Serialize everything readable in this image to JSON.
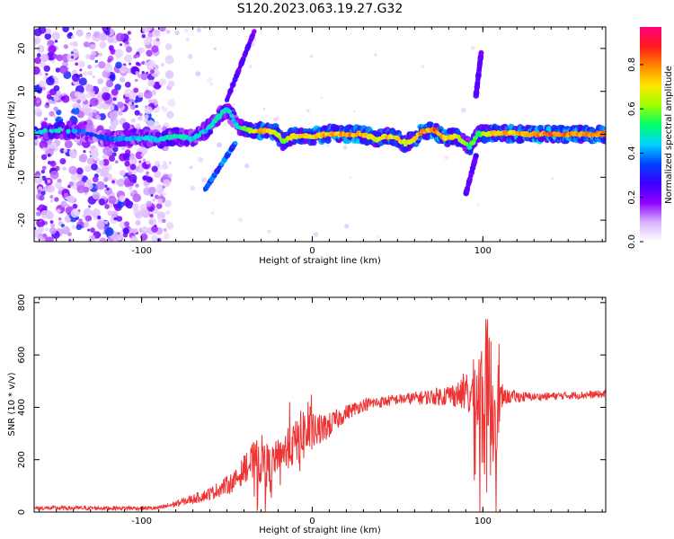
{
  "title": "S120.2023.063.19.27.G32",
  "chart_data": [
    {
      "type": "heatmap",
      "xlabel": "Height of straight line (km)",
      "ylabel": "Frequency (Hz)",
      "xlim": [
        -163,
        172
      ],
      "ylim": [
        -25,
        25
      ],
      "x_ticks": [
        -100,
        0,
        100
      ],
      "x_tick_labels": [
        "-100",
        "0",
        "100"
      ],
      "y_ticks": [
        -20,
        -10,
        0,
        10,
        20
      ],
      "y_tick_labels": [
        "-20",
        "-10",
        "0",
        "10",
        "20"
      ],
      "grid": false,
      "colorbar": {
        "label": "Normalized spectral amplitude",
        "range": [
          0,
          0.97
        ],
        "ticks": [
          0,
          0.2,
          0.4,
          0.6,
          0.8
        ],
        "tick_labels": [
          "0.0",
          "0.2",
          "0.4",
          "0.6",
          "0.8"
        ],
        "colors": [
          "#ffffff",
          "#d9b3ff",
          "#8f00ff",
          "#3b00ff",
          "#0044ff",
          "#00d5ff",
          "#00ff66",
          "#9fff00",
          "#ffe600",
          "#ff8800",
          "#ff1a1a",
          "#ff007f"
        ]
      },
      "ridge": [
        {
          "x": -163,
          "f": 0.5,
          "a": 0.5
        },
        {
          "x": -150,
          "f": 1.0,
          "a": 0.55
        },
        {
          "x": -140,
          "f": 0.8,
          "a": 0.5
        },
        {
          "x": -130,
          "f": 0.2,
          "a": 0.35
        },
        {
          "x": -120,
          "f": -1.0,
          "a": 0.4
        },
        {
          "x": -110,
          "f": -1.0,
          "a": 0.45
        },
        {
          "x": -100,
          "f": -0.8,
          "a": 0.5
        },
        {
          "x": -90,
          "f": -1.2,
          "a": 0.5
        },
        {
          "x": -80,
          "f": -0.5,
          "a": 0.55
        },
        {
          "x": -70,
          "f": -1.0,
          "a": 0.5
        },
        {
          "x": -62,
          "f": 1.0,
          "a": 0.5
        },
        {
          "x": -55,
          "f": 4.0,
          "a": 0.55
        },
        {
          "x": -50,
          "f": 6.0,
          "a": 0.5
        },
        {
          "x": -44,
          "f": 2.0,
          "a": 0.5
        },
        {
          "x": -36,
          "f": 0.8,
          "a": 0.7
        },
        {
          "x": -30,
          "f": 0.8,
          "a": 0.85
        },
        {
          "x": -22,
          "f": 0.6,
          "a": 0.75
        },
        {
          "x": -17,
          "f": -1.8,
          "a": 0.65
        },
        {
          "x": -12,
          "f": -0.5,
          "a": 0.75
        },
        {
          "x": 0,
          "f": -0.5,
          "a": 0.8
        },
        {
          "x": 10,
          "f": 0.2,
          "a": 0.85
        },
        {
          "x": 20,
          "f": 0.0,
          "a": 0.85
        },
        {
          "x": 30,
          "f": 0.0,
          "a": 0.85
        },
        {
          "x": 38,
          "f": -1.2,
          "a": 0.7
        },
        {
          "x": 42,
          "f": -0.5,
          "a": 0.8
        },
        {
          "x": 48,
          "f": -0.8,
          "a": 0.8
        },
        {
          "x": 55,
          "f": -2.2,
          "a": 0.7
        },
        {
          "x": 60,
          "f": -1.0,
          "a": 0.8
        },
        {
          "x": 65,
          "f": 0.8,
          "a": 0.85
        },
        {
          "x": 72,
          "f": 0.8,
          "a": 0.9
        },
        {
          "x": 78,
          "f": -0.8,
          "a": 0.8
        },
        {
          "x": 85,
          "f": -0.5,
          "a": 0.75
        },
        {
          "x": 92,
          "f": -3.0,
          "a": 0.6
        },
        {
          "x": 97,
          "f": 0.0,
          "a": 0.6
        },
        {
          "x": 105,
          "f": 0.3,
          "a": 0.8
        },
        {
          "x": 120,
          "f": 0.1,
          "a": 0.85
        },
        {
          "x": 140,
          "f": 0.0,
          "a": 0.9
        },
        {
          "x": 160,
          "f": 0.0,
          "a": 0.9
        },
        {
          "x": 172,
          "f": 0.0,
          "a": 0.9
        }
      ],
      "features": [
        {
          "x_from": -63,
          "x_to": -45,
          "f_from": -13,
          "f_to": -2,
          "a": 0.45
        },
        {
          "x_from": -50,
          "x_to": -34,
          "f_from": 8,
          "f_to": 24,
          "a": 0.3
        },
        {
          "x_from": 90,
          "x_to": 96,
          "f_from": -14,
          "f_to": -5,
          "a": 0.3
        },
        {
          "x_from": 96,
          "x_to": 99,
          "f_from": 9,
          "f_to": 19,
          "a": 0.3
        }
      ]
    },
    {
      "type": "line",
      "xlabel": "Height of straight line (km)",
      "ylabel": "SNR (10 * v/v)",
      "xlim": [
        -163,
        172
      ],
      "ylim": [
        0,
        820
      ],
      "x_ticks": [
        -100,
        0,
        100
      ],
      "x_tick_labels": [
        "-100",
        "0",
        "100"
      ],
      "y_ticks": [
        0,
        200,
        400,
        600,
        800
      ],
      "y_tick_labels": [
        "0",
        "200",
        "400",
        "600",
        "800"
      ],
      "grid": false,
      "color": "#ee3333",
      "envelope": [
        {
          "x": -163,
          "y": 15,
          "noise": 8
        },
        {
          "x": -90,
          "y": 15,
          "noise": 8
        },
        {
          "x": -75,
          "y": 40,
          "noise": 15
        },
        {
          "x": -60,
          "y": 70,
          "noise": 25
        },
        {
          "x": -45,
          "y": 120,
          "noise": 40
        },
        {
          "x": -38,
          "y": 180,
          "noise": 60
        },
        {
          "x": -30,
          "y": 200,
          "noise": 100
        },
        {
          "x": -25,
          "y": 170,
          "noise": 80
        },
        {
          "x": -20,
          "y": 220,
          "noise": 60
        },
        {
          "x": -10,
          "y": 260,
          "noise": 90
        },
        {
          "x": -5,
          "y": 300,
          "noise": 110
        },
        {
          "x": 0,
          "y": 300,
          "noise": 70
        },
        {
          "x": 10,
          "y": 330,
          "noise": 50
        },
        {
          "x": 20,
          "y": 380,
          "noise": 30
        },
        {
          "x": 30,
          "y": 410,
          "noise": 25
        },
        {
          "x": 50,
          "y": 430,
          "noise": 20
        },
        {
          "x": 70,
          "y": 440,
          "noise": 30
        },
        {
          "x": 85,
          "y": 450,
          "noise": 50
        },
        {
          "x": 92,
          "y": 440,
          "noise": 80
        },
        {
          "x": 97,
          "y": 450,
          "noise": 200
        },
        {
          "x": 102,
          "y": 400,
          "noise": 350
        },
        {
          "x": 108,
          "y": 420,
          "noise": 200
        },
        {
          "x": 112,
          "y": 440,
          "noise": 30
        },
        {
          "x": 130,
          "y": 440,
          "noise": 15
        },
        {
          "x": 150,
          "y": 445,
          "noise": 15
        },
        {
          "x": 172,
          "y": 450,
          "noise": 15
        }
      ]
    }
  ]
}
